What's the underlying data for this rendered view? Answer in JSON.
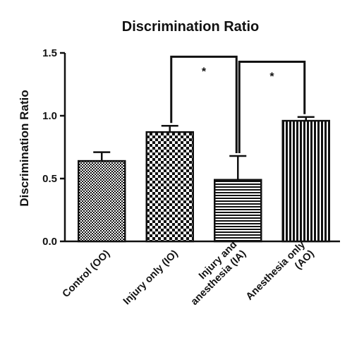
{
  "chart_data": {
    "type": "bar",
    "title": "Discrimination Ratio",
    "ylabel": "Discrimination Ratio",
    "xlabel": "",
    "ylim": [
      0,
      1.5
    ],
    "yticks": [
      0.0,
      0.5,
      1.0,
      1.5
    ],
    "ytick_labels": [
      "0.0",
      "0.5",
      "1.0",
      "1.5"
    ],
    "categories": [
      [
        "Control (OO)"
      ],
      [
        "Injury only (IO)"
      ],
      [
        "Injury and",
        "anesthesia (IA)"
      ],
      [
        "Anesthesia only",
        "(AO)"
      ]
    ],
    "values": [
      0.64,
      0.87,
      0.49,
      0.96
    ],
    "error_upper": [
      0.71,
      0.92,
      0.68,
      0.99
    ],
    "patterns": [
      "fine-checker",
      "checker",
      "horizontal-stripes",
      "vertical-stripes"
    ],
    "significance": [
      {
        "from": 1,
        "to": 2,
        "label": "*",
        "level": 1.47
      },
      {
        "from": 2,
        "to": 3,
        "label": "*",
        "level": 1.43
      }
    ],
    "colors": {
      "ink": "#111111",
      "background": "#ffffff"
    }
  }
}
